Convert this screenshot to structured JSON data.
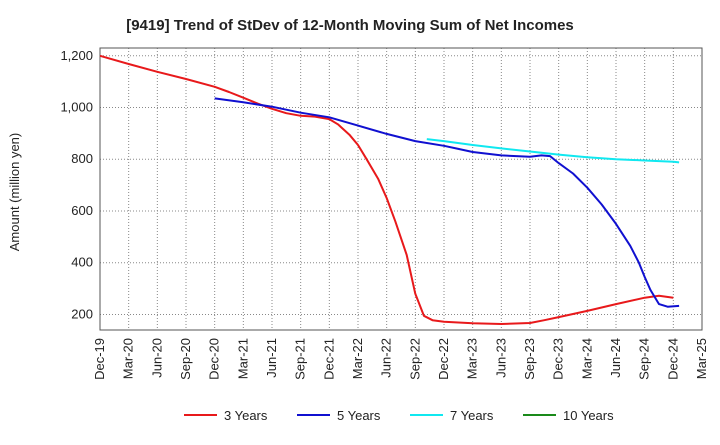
{
  "chart_data": {
    "type": "line",
    "title": "[9419]  Trend of StDev of 12-Month Moving Sum of Net Incomes",
    "ylabel": "Amount (million yen)",
    "xlabel": "",
    "ylim": [
      140,
      1230
    ],
    "yticks": [
      200,
      400,
      600,
      800,
      1000,
      1200
    ],
    "ytick_labels": [
      "200",
      "400",
      "600",
      "800",
      "1,000",
      "1,200"
    ],
    "x_categories": [
      "Dec-19",
      "Mar-20",
      "Jun-20",
      "Sep-20",
      "Dec-20",
      "Mar-21",
      "Jun-21",
      "Sep-21",
      "Dec-21",
      "Mar-22",
      "Jun-22",
      "Sep-22",
      "Dec-22",
      "Mar-23",
      "Jun-23",
      "Sep-23",
      "Dec-23",
      "Mar-24",
      "Jun-24",
      "Sep-24",
      "Dec-24",
      "Mar-25"
    ],
    "grid": true,
    "legend_position": "bottom",
    "series": [
      {
        "name": "3 Years",
        "color": "#e8191b",
        "points": [
          [
            0,
            1200
          ],
          [
            1,
            1168
          ],
          [
            2,
            1138
          ],
          [
            3,
            1110
          ],
          [
            4,
            1080
          ],
          [
            4.5,
            1060
          ],
          [
            5,
            1038
          ],
          [
            5.5,
            1015
          ],
          [
            6,
            995
          ],
          [
            6.5,
            978
          ],
          [
            7,
            968
          ],
          [
            7.5,
            965
          ],
          [
            8,
            955
          ],
          [
            8.3,
            935
          ],
          [
            8.7,
            895
          ],
          [
            9,
            855
          ],
          [
            9.3,
            800
          ],
          [
            9.7,
            725
          ],
          [
            10,
            650
          ],
          [
            10.3,
            560
          ],
          [
            10.7,
            430
          ],
          [
            11,
            280
          ],
          [
            11.3,
            195
          ],
          [
            11.6,
            178
          ],
          [
            12,
            172
          ],
          [
            12.5,
            169
          ],
          [
            13,
            166
          ],
          [
            14,
            163
          ],
          [
            15,
            167
          ],
          [
            15.5,
            178
          ],
          [
            16,
            190
          ],
          [
            17,
            214
          ],
          [
            18,
            240
          ],
          [
            19,
            265
          ],
          [
            19.5,
            272
          ],
          [
            20,
            265
          ]
        ]
      },
      {
        "name": "5 Years",
        "color": "#1010d0",
        "points": [
          [
            4,
            1035
          ],
          [
            5,
            1020
          ],
          [
            6,
            1003
          ],
          [
            7,
            980
          ],
          [
            8,
            962
          ],
          [
            9,
            930
          ],
          [
            10,
            898
          ],
          [
            11,
            870
          ],
          [
            12,
            852
          ],
          [
            12.5,
            840
          ],
          [
            13,
            828
          ],
          [
            14,
            815
          ],
          [
            15,
            810
          ],
          [
            15.4,
            815
          ],
          [
            15.7,
            812
          ],
          [
            16,
            785
          ],
          [
            16.5,
            745
          ],
          [
            17,
            690
          ],
          [
            17.5,
            625
          ],
          [
            18,
            550
          ],
          [
            18.5,
            465
          ],
          [
            18.8,
            400
          ],
          [
            19,
            345
          ],
          [
            19.2,
            295
          ],
          [
            19.5,
            240
          ],
          [
            19.8,
            230
          ],
          [
            20.2,
            233
          ]
        ]
      },
      {
        "name": "7 Years",
        "color": "#10e8f0",
        "points": [
          [
            11.4,
            878
          ],
          [
            12,
            870
          ],
          [
            13,
            855
          ],
          [
            14,
            842
          ],
          [
            15,
            830
          ],
          [
            16,
            818
          ],
          [
            17,
            808
          ],
          [
            18,
            800
          ],
          [
            19,
            795
          ],
          [
            20,
            790
          ],
          [
            20.2,
            788
          ]
        ]
      },
      {
        "name": "10 Years",
        "color": "#1a8a1a",
        "points": []
      }
    ]
  }
}
